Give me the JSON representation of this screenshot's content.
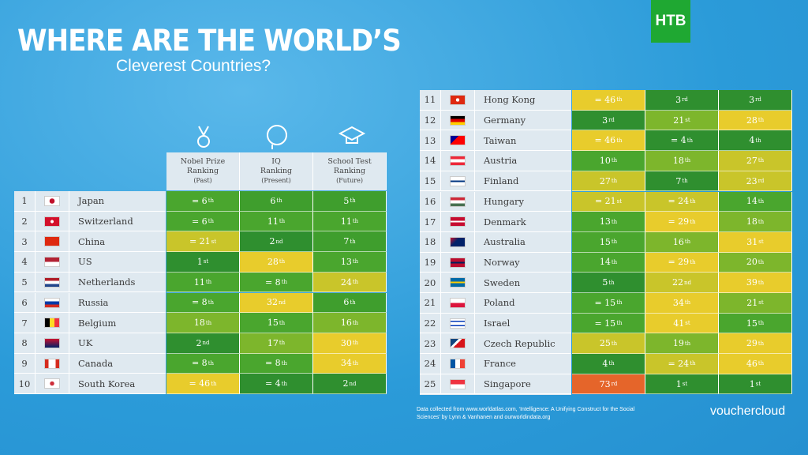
{
  "header": {
    "title": "WHERE ARE THE WORLD’S",
    "subtitle": "Cleverest Countries?"
  },
  "columns": [
    {
      "lines": [
        "Nobel Prize",
        "Ranking",
        "(Past)"
      ]
    },
    {
      "lines": [
        "IQ",
        "Ranking",
        "(Present)"
      ]
    },
    {
      "lines": [
        "School Test",
        "Ranking",
        "(Future)"
      ]
    }
  ],
  "tables": [
    {
      "rows": [
        {
          "rank": 1,
          "country": "Japan",
          "cells": [
            {
              "text": "= 6",
              "sup": "th",
              "color": "#4aa62e"
            },
            {
              "text": "6",
              "sup": "th",
              "color": "#3f9e2d"
            },
            {
              "text": "5",
              "sup": "th",
              "color": "#3f9e2d"
            }
          ]
        },
        {
          "rank": 2,
          "country": "Switzerland",
          "cells": [
            {
              "text": "= 6",
              "sup": "th",
              "color": "#4aa62e"
            },
            {
              "text": "11",
              "sup": "th",
              "color": "#4aa62e"
            },
            {
              "text": "11",
              "sup": "th",
              "color": "#4aa62e"
            }
          ]
        },
        {
          "rank": 3,
          "country": "China",
          "cells": [
            {
              "text": "= 21",
              "sup": "st",
              "color": "#c9c52a"
            },
            {
              "text": "2",
              "sup": "nd",
              "color": "#2f8f2f"
            },
            {
              "text": "7",
              "sup": "th",
              "color": "#3f9e2d"
            }
          ]
        },
        {
          "rank": 4,
          "country": "US",
          "cells": [
            {
              "text": "1",
              "sup": "st",
              "color": "#2f8f2f"
            },
            {
              "text": "28",
              "sup": "th",
              "color": "#e8cc2c"
            },
            {
              "text": "13",
              "sup": "th",
              "color": "#4aa62e"
            }
          ]
        },
        {
          "rank": 5,
          "country": "Netherlands",
          "cells": [
            {
              "text": "11",
              "sup": "th",
              "color": "#4aa62e"
            },
            {
              "text": "= 8",
              "sup": "th",
              "color": "#4aa62e"
            },
            {
              "text": "24",
              "sup": "th",
              "color": "#c9c52a"
            }
          ]
        },
        {
          "rank": 6,
          "country": "Russia",
          "cells": [
            {
              "text": "= 8",
              "sup": "th",
              "color": "#4aa62e"
            },
            {
              "text": "32",
              "sup": "nd",
              "color": "#e8cc2c"
            },
            {
              "text": "6",
              "sup": "th",
              "color": "#3f9e2d"
            }
          ]
        },
        {
          "rank": 7,
          "country": "Belgium",
          "cells": [
            {
              "text": "18",
              "sup": "th",
              "color": "#7db62c"
            },
            {
              "text": "15",
              "sup": "th",
              "color": "#4aa62e"
            },
            {
              "text": "16",
              "sup": "th",
              "color": "#7db62c"
            }
          ]
        },
        {
          "rank": 8,
          "country": "UK",
          "cells": [
            {
              "text": "2",
              "sup": "nd",
              "color": "#2f8f2f"
            },
            {
              "text": "17",
              "sup": "th",
              "color": "#7db62c"
            },
            {
              "text": "30",
              "sup": "th",
              "color": "#e8cc2c"
            }
          ]
        },
        {
          "rank": 9,
          "country": "Canada",
          "cells": [
            {
              "text": "= 8",
              "sup": "th",
              "color": "#4aa62e"
            },
            {
              "text": "= 8",
              "sup": "th",
              "color": "#4aa62e"
            },
            {
              "text": "34",
              "sup": "th",
              "color": "#e8cc2c"
            }
          ]
        },
        {
          "rank": 10,
          "country": "South Korea",
          "cells": [
            {
              "text": "= 46",
              "sup": "th",
              "color": "#e8cc2c"
            },
            {
              "text": "= 4",
              "sup": "th",
              "color": "#2f8f2f"
            },
            {
              "text": "2",
              "sup": "nd",
              "color": "#2f8f2f"
            }
          ]
        }
      ]
    },
    {
      "rows": [
        {
          "rank": 11,
          "country": "Hong Kong",
          "cells": [
            {
              "text": "= 46",
              "sup": "th",
              "color": "#e8cc2c"
            },
            {
              "text": "3",
              "sup": "rd",
              "color": "#2f8f2f"
            },
            {
              "text": "3",
              "sup": "rd",
              "color": "#2f8f2f"
            }
          ]
        },
        {
          "rank": 12,
          "country": "Germany",
          "cells": [
            {
              "text": "3",
              "sup": "rd",
              "color": "#2f8f2f"
            },
            {
              "text": "21",
              "sup": "st",
              "color": "#7db62c"
            },
            {
              "text": "28",
              "sup": "th",
              "color": "#e8cc2c"
            }
          ]
        },
        {
          "rank": 13,
          "country": "Taiwan",
          "cells": [
            {
              "text": "= 46",
              "sup": "th",
              "color": "#e8cc2c"
            },
            {
              "text": "= 4",
              "sup": "th",
              "color": "#2f8f2f"
            },
            {
              "text": "4",
              "sup": "th",
              "color": "#2f8f2f"
            }
          ]
        },
        {
          "rank": 14,
          "country": "Austria",
          "cells": [
            {
              "text": "10",
              "sup": "th",
              "color": "#4aa62e"
            },
            {
              "text": "18",
              "sup": "th",
              "color": "#7db62c"
            },
            {
              "text": "27",
              "sup": "th",
              "color": "#c9c52a"
            }
          ]
        },
        {
          "rank": 15,
          "country": "Finland",
          "cells": [
            {
              "text": "27",
              "sup": "th",
              "color": "#c9c52a"
            },
            {
              "text": "7",
              "sup": "th",
              "color": "#2f8f2f"
            },
            {
              "text": "23",
              "sup": "rd",
              "color": "#c9c52a"
            }
          ]
        },
        {
          "rank": 16,
          "country": "Hungary",
          "cells": [
            {
              "text": "= 21",
              "sup": "st",
              "color": "#c9c52a"
            },
            {
              "text": "= 24",
              "sup": "th",
              "color": "#c9c52a"
            },
            {
              "text": "14",
              "sup": "th",
              "color": "#4aa62e"
            }
          ]
        },
        {
          "rank": 17,
          "country": "Denmark",
          "cells": [
            {
              "text": "13",
              "sup": "th",
              "color": "#4aa62e"
            },
            {
              "text": "= 29",
              "sup": "th",
              "color": "#e8cc2c"
            },
            {
              "text": "18",
              "sup": "th",
              "color": "#7db62c"
            }
          ]
        },
        {
          "rank": 18,
          "country": "Australia",
          "cells": [
            {
              "text": "15",
              "sup": "th",
              "color": "#4aa62e"
            },
            {
              "text": "16",
              "sup": "th",
              "color": "#7db62c"
            },
            {
              "text": "31",
              "sup": "st",
              "color": "#e8cc2c"
            }
          ]
        },
        {
          "rank": 19,
          "country": "Norway",
          "cells": [
            {
              "text": "14",
              "sup": "th",
              "color": "#4aa62e"
            },
            {
              "text": "= 29",
              "sup": "th",
              "color": "#e8cc2c"
            },
            {
              "text": "20",
              "sup": "th",
              "color": "#7db62c"
            }
          ]
        },
        {
          "rank": 20,
          "country": "Sweden",
          "cells": [
            {
              "text": "5",
              "sup": "th",
              "color": "#2f8f2f"
            },
            {
              "text": "22",
              "sup": "nd",
              "color": "#c9c52a"
            },
            {
              "text": "39",
              "sup": "th",
              "color": "#e8cc2c"
            }
          ]
        },
        {
          "rank": 21,
          "country": "Poland",
          "cells": [
            {
              "text": "= 15",
              "sup": "th",
              "color": "#4aa62e"
            },
            {
              "text": "34",
              "sup": "th",
              "color": "#e8cc2c"
            },
            {
              "text": "21",
              "sup": "st",
              "color": "#7db62c"
            }
          ]
        },
        {
          "rank": 22,
          "country": "Israel",
          "cells": [
            {
              "text": "= 15",
              "sup": "th",
              "color": "#4aa62e"
            },
            {
              "text": "41",
              "sup": "st",
              "color": "#e8cc2c"
            },
            {
              "text": "15",
              "sup": "th",
              "color": "#4aa62e"
            }
          ]
        },
        {
          "rank": 23,
          "country": "Czech Republic",
          "cells": [
            {
              "text": "25",
              "sup": "th",
              "color": "#c9c52a"
            },
            {
              "text": "19",
              "sup": "th",
              "color": "#7db62c"
            },
            {
              "text": "29",
              "sup": "th",
              "color": "#e8cc2c"
            }
          ]
        },
        {
          "rank": 24,
          "country": "France",
          "cells": [
            {
              "text": "4",
              "sup": "th",
              "color": "#2f8f2f"
            },
            {
              "text": "= 24",
              "sup": "th",
              "color": "#c9c52a"
            },
            {
              "text": "46",
              "sup": "th",
              "color": "#e8cc2c"
            }
          ]
        },
        {
          "rank": 25,
          "country": "Singapore",
          "cells": [
            {
              "text": "73",
              "sup": "rd",
              "color": "#e5652a"
            },
            {
              "text": "1",
              "sup": "st",
              "color": "#2f8f2f"
            },
            {
              "text": "1",
              "sup": "st",
              "color": "#2f8f2f"
            }
          ]
        }
      ]
    }
  ],
  "footer": "Data collected from www.worldatlas.com, ‘Intelligence: A Unifying Construct for the Social Sciences’ by Lynn & Vanhanen and ourworldindata.org",
  "brand": "vouchercloud",
  "channel": "НТВ"
}
